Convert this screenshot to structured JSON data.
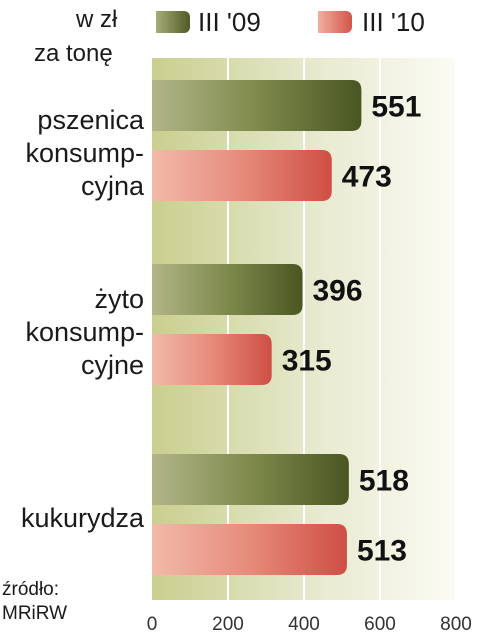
{
  "header": {
    "unit_line1": "w zł",
    "unit_line2": "za tonę"
  },
  "legend": [
    {
      "label": "III '09",
      "color": "#5f6b32"
    },
    {
      "label": "III '10",
      "color": "#d9645a"
    }
  ],
  "source": {
    "line1": "źródło:",
    "line2": "MRiRW"
  },
  "chart_data": {
    "type": "bar",
    "orientation": "horizontal",
    "categories": [
      [
        "pszenica",
        "konsump-",
        "cyjna"
      ],
      [
        "żyto",
        "konsump-",
        "cyjne"
      ],
      [
        "kukurydza"
      ]
    ],
    "series": [
      {
        "name": "III '09",
        "values": [
          551,
          396,
          518
        ],
        "color": "#5f6b32"
      },
      {
        "name": "III '10",
        "values": [
          473,
          315,
          513
        ],
        "color": "#d9645a"
      }
    ],
    "xlim": [
      0,
      800
    ],
    "xticks": [
      "0",
      "200",
      "400",
      "600",
      "800"
    ],
    "grid": true,
    "value_labels": true,
    "legend_position": "top"
  }
}
